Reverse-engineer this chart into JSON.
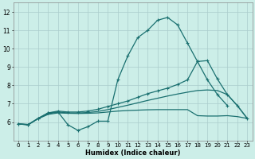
{
  "title": "",
  "xlabel": "Humidex (Indice chaleur)",
  "bg_color": "#cceee8",
  "grid_color": "#aacccc",
  "line_color": "#1a7070",
  "xlim": [
    -0.5,
    23.5
  ],
  "ylim": [
    5.0,
    12.5
  ],
  "yticks": [
    6,
    7,
    8,
    9,
    10,
    11,
    12
  ],
  "xticks": [
    0,
    1,
    2,
    3,
    4,
    5,
    6,
    7,
    8,
    9,
    10,
    11,
    12,
    13,
    14,
    15,
    16,
    17,
    18,
    19,
    20,
    21,
    22,
    23
  ],
  "line1_x": [
    0,
    1,
    2,
    3,
    4,
    5,
    6,
    7,
    8,
    9,
    10,
    11,
    12,
    13,
    14,
    15,
    16,
    17,
    18,
    19,
    20,
    21
  ],
  "line1_y": [
    5.9,
    5.85,
    6.2,
    6.5,
    6.55,
    5.85,
    5.55,
    5.75,
    6.05,
    6.05,
    8.3,
    9.6,
    10.6,
    11.0,
    11.55,
    11.7,
    11.3,
    10.3,
    9.3,
    8.3,
    7.5,
    6.9
  ],
  "line2_x": [
    0,
    1,
    2,
    3,
    4,
    5,
    6,
    7,
    8,
    9,
    10,
    11,
    12,
    13,
    14,
    15,
    16,
    17,
    18,
    19,
    20,
    21,
    22,
    23
  ],
  "line2_y": [
    5.9,
    5.85,
    6.2,
    6.5,
    6.6,
    6.55,
    6.55,
    6.6,
    6.7,
    6.85,
    7.0,
    7.15,
    7.35,
    7.55,
    7.7,
    7.85,
    8.05,
    8.3,
    9.3,
    9.35,
    8.35,
    7.5,
    6.9,
    6.2
  ],
  "line3_x": [
    0,
    1,
    2,
    3,
    4,
    5,
    6,
    7,
    8,
    9,
    10,
    11,
    12,
    13,
    14,
    15,
    16,
    17,
    18,
    19,
    20,
    21,
    22,
    23
  ],
  "line3_y": [
    5.9,
    5.87,
    6.2,
    6.45,
    6.55,
    6.5,
    6.5,
    6.52,
    6.58,
    6.68,
    6.8,
    6.92,
    7.05,
    7.18,
    7.3,
    7.42,
    7.53,
    7.63,
    7.72,
    7.75,
    7.72,
    7.5,
    6.9,
    6.2
  ],
  "line4_x": [
    0,
    1,
    2,
    3,
    4,
    5,
    6,
    7,
    8,
    9,
    10,
    11,
    12,
    13,
    14,
    15,
    16,
    17,
    18,
    19,
    20,
    21,
    22,
    23
  ],
  "line4_y": [
    5.9,
    5.87,
    6.18,
    6.42,
    6.5,
    6.48,
    6.47,
    6.48,
    6.5,
    6.55,
    6.6,
    6.63,
    6.65,
    6.67,
    6.68,
    6.68,
    6.68,
    6.68,
    6.35,
    6.33,
    6.33,
    6.35,
    6.3,
    6.2
  ]
}
